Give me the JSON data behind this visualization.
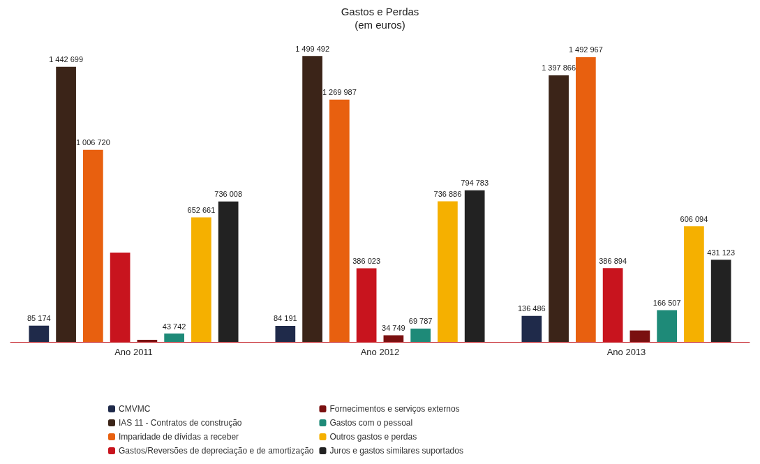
{
  "chart_data": {
    "type": "bar",
    "title": "Gastos e Perdas",
    "subtitle": "(em euros)",
    "categories": [
      "Ano 2011",
      "Ano 2012",
      "Ano 2013"
    ],
    "legend": "bottom",
    "series": [
      {
        "name": "CMVMC",
        "color": "#1f2a4a",
        "values": [
          85174,
          84191,
          136486
        ],
        "value_labels": [
          "85 174",
          "84 191",
          "136 486"
        ]
      },
      {
        "name": "IAS 11 - Contratos de construção",
        "color": "#3b2418",
        "values": [
          1442699,
          1499492,
          1397866
        ],
        "value_labels": [
          "1 442 699",
          "1 499 492",
          "1 397 866"
        ]
      },
      {
        "name": "Imparidade de dívidas a receber",
        "color": "#e8600f",
        "values": [
          1006720,
          1269987,
          1492967
        ],
        "value_labels": [
          "1 006 720",
          "1 269 987",
          "1 492 967"
        ]
      },
      {
        "name": "Gastos/Reversões de depreciação e de amortização",
        "color": "#c8141e",
        "values": [
          468000,
          386023,
          386894
        ],
        "value_labels": [
          null,
          "386 023",
          "386 894"
        ]
      },
      {
        "name": "Fornecimentos e serviços externos",
        "color": "#7a1010",
        "values": [
          11000,
          34749,
          60000
        ],
        "value_labels": [
          null,
          "34 749",
          null
        ]
      },
      {
        "name": "Gastos com o pessoal",
        "color": "#1e8a78",
        "values": [
          43742,
          69787,
          166507
        ],
        "value_labels": [
          "43 742",
          "69 787",
          "166 507"
        ]
      },
      {
        "name": "Outros gastos e perdas",
        "color": "#f5b000",
        "values": [
          652661,
          736886,
          606094
        ],
        "value_labels": [
          "652 661",
          "736 886",
          "606 094"
        ]
      },
      {
        "name": "Juros e gastos similares suportados",
        "color": "#222222",
        "values": [
          736008,
          794783,
          431123
        ],
        "value_labels": [
          "736 008",
          "794 783",
          "431 123"
        ]
      }
    ]
  }
}
